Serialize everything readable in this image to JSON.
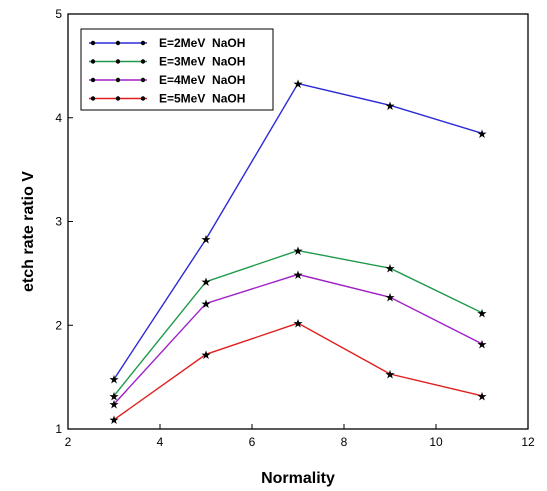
{
  "chart_data": {
    "type": "line",
    "title": "",
    "xlabel": "Normality",
    "ylabel": "etch rate ratio V",
    "xlim": [
      2,
      12
    ],
    "ylim": [
      1,
      5
    ],
    "x_ticks": [
      2,
      4,
      6,
      8,
      10,
      12
    ],
    "y_ticks": [
      1,
      2,
      3,
      4,
      5
    ],
    "grid": false,
    "legend_position": "top-left",
    "marker": "star",
    "x": [
      3,
      5,
      7,
      9,
      11
    ],
    "series": [
      {
        "name": "E=2MeV  NaOH",
        "color": "#2b2bd6",
        "values": [
          1.48,
          2.83,
          4.33,
          4.12,
          3.85
        ]
      },
      {
        "name": "E=3MeV  NaOH",
        "color": "#1f9a4a",
        "values": [
          1.32,
          2.42,
          2.72,
          2.55,
          2.12
        ]
      },
      {
        "name": "E=4MeV  NaOH",
        "color": "#a020c8",
        "values": [
          1.24,
          2.21,
          2.49,
          2.27,
          1.82
        ]
      },
      {
        "name": "E=5MeV  NaOH",
        "color": "#e02020",
        "values": [
          1.09,
          1.72,
          2.02,
          1.53,
          1.32
        ]
      }
    ]
  }
}
